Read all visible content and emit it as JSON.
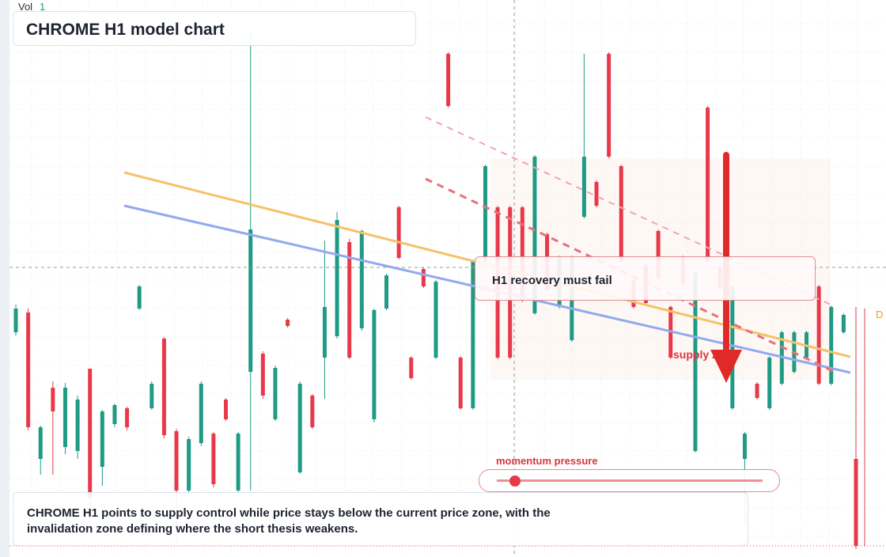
{
  "chart_data": {
    "type": "candlestick",
    "title": "CHROME H1 model chart",
    "volume_label": "Vol",
    "volume_value": 1,
    "annotation": "H1 recovery must fail",
    "zone_label": "supply zone",
    "slider_label": "momentum pressure",
    "description": "CHROME H1 points to supply control while price stays below the current price zone, with the invalidation zone defining where the short thesis weakens.",
    "last_label": "D",
    "up_color": "#1f9b85",
    "down_color": "#e8394a",
    "ylim": [
      0,
      70.4
    ],
    "grid": true,
    "open": [
      28.4,
      30.9,
      12.4,
      21.4,
      13.9,
      13.4,
      23.8,
      11.4,
      16.8,
      18.8,
      31.4,
      18.8,
      27.6,
      15.9,
      8.4,
      14.4,
      15.6,
      19.9,
      8.4,
      23.4,
      25.7,
      17.4,
      30.0,
      10.7,
      20.4,
      25.2,
      27.9,
      39.8,
      28.9,
      17.4,
      31.4,
      44.2,
      25.2,
      36.4,
      25.2,
      63.6,
      25.2,
      18.8,
      37.4,
      44.2,
      44.2,
      44.2,
      30.8,
      40.8,
      31.6,
      27.4,
      43.0,
      47.4,
      63.6,
      49.4,
      34.9,
      36.9,
      41.2,
      31.6,
      37.9,
      13.4,
      56.8,
      36.6,
      18.8,
      12.4,
      21.9,
      18.8,
      21.9,
      23.4,
      25.2,
      34.2,
      21.9,
      28.4,
      12.4
    ],
    "high": [
      31.9,
      31.4,
      16.6,
      22.2,
      22.0,
      20.4,
      23.8,
      18.6,
      19.4,
      19.0,
      34.4,
      22.2,
      27.8,
      16.2,
      15.2,
      22.2,
      15.8,
      20.1,
      15.8,
      66.4,
      26.0,
      24.2,
      30.2,
      22.2,
      20.6,
      40.0,
      43.6,
      40.2,
      41.4,
      31.4,
      35.8,
      44.4,
      25.4,
      36.6,
      35.0,
      63.8,
      25.4,
      37.6,
      49.6,
      44.4,
      44.4,
      44.4,
      50.8,
      41.0,
      38.1,
      38.1,
      63.6,
      47.6,
      63.8,
      49.6,
      35.1,
      37.1,
      41.4,
      31.8,
      38.1,
      36.1,
      57.0,
      36.8,
      34.4,
      15.8,
      22.1,
      25.4,
      28.6,
      28.6,
      28.6,
      34.4,
      31.8,
      30.8,
      31.6
    ],
    "low": [
      28.0,
      16.0,
      10.4,
      10.4,
      13.0,
      12.4,
      5.0,
      9.0,
      16.4,
      16.0,
      31.2,
      18.6,
      15.0,
      2.0,
      8.0,
      14.0,
      8.8,
      17.2,
      8.2,
      8.4,
      20.0,
      17.2,
      29.0,
      10.5,
      16.2,
      20.0,
      27.6,
      25.0,
      28.6,
      17.0,
      31.2,
      37.6,
      22.4,
      34.0,
      25.0,
      56.8,
      18.6,
      18.6,
      37.2,
      25.0,
      25.0,
      32.2,
      30.6,
      33.6,
      31.4,
      27.2,
      42.8,
      44.2,
      50.4,
      37.2,
      31.4,
      31.9,
      35.0,
      25.0,
      34.4,
      13.2,
      37.2,
      33.8,
      18.6,
      4.0,
      19.9,
      18.6,
      21.7,
      23.2,
      25.0,
      21.7,
      21.7,
      28.2,
      1.0
    ],
    "close": [
      31.4,
      16.4,
      16.4,
      18.4,
      21.4,
      19.9,
      7.4,
      18.4,
      19.2,
      16.4,
      34.2,
      21.9,
      15.4,
      8.4,
      14.9,
      21.9,
      9.2,
      17.4,
      15.6,
      41.4,
      20.4,
      23.9,
      29.2,
      21.9,
      16.4,
      31.6,
      42.6,
      25.2,
      41.2,
      31.2,
      35.6,
      37.8,
      22.6,
      34.2,
      34.8,
      57.0,
      18.8,
      37.4,
      49.4,
      25.2,
      25.2,
      32.4,
      50.6,
      33.8,
      37.9,
      37.9,
      50.6,
      44.4,
      50.6,
      37.4,
      31.6,
      32.1,
      35.2,
      25.2,
      34.6,
      35.9,
      37.4,
      34.0,
      34.2,
      15.6,
      20.1,
      25.2,
      28.4,
      28.4,
      28.4,
      21.9,
      31.6,
      30.6,
      1.4
    ]
  }
}
